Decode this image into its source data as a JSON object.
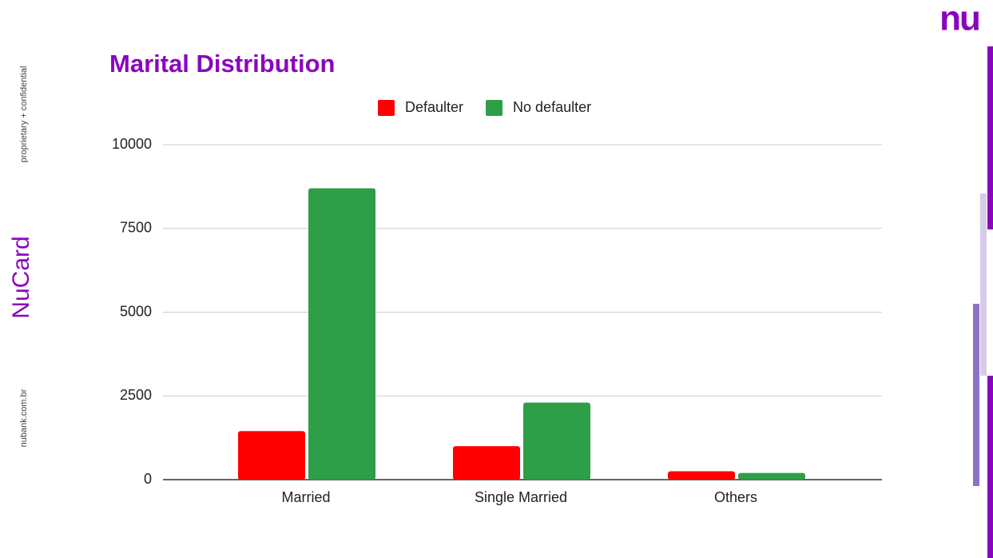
{
  "slide": {
    "side_note": "proprietary + confidential",
    "website": "nubank.com.br",
    "brand": "NuCard",
    "logo": "nu"
  },
  "chart_data": {
    "type": "bar",
    "title": "Marital Distribution",
    "categories": [
      "Married",
      "Single Married",
      "Others"
    ],
    "series": [
      {
        "name": "Defaulter",
        "color": "#ff0000",
        "values": [
          1450,
          1000,
          250
        ]
      },
      {
        "name": "No defaulter",
        "color": "#2e9e48",
        "values": [
          8700,
          2300,
          200
        ]
      }
    ],
    "ylim": [
      0,
      10000
    ],
    "yticks": [
      0,
      2500,
      5000,
      7500,
      10000
    ],
    "grid": true,
    "legend": "top"
  }
}
